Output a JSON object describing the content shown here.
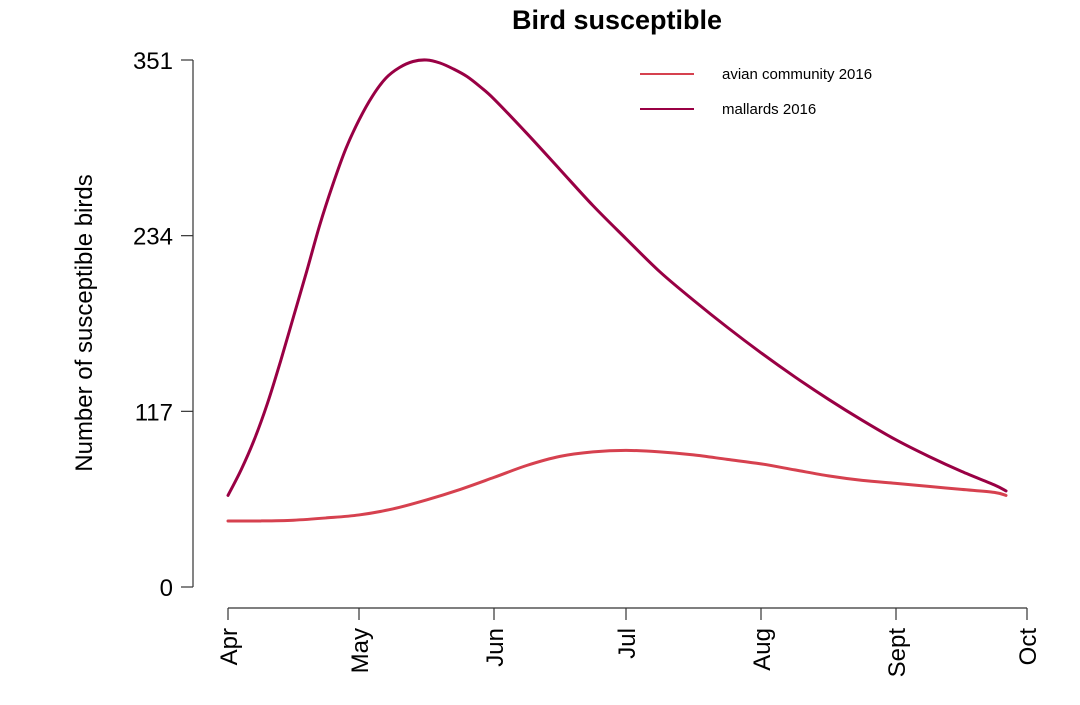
{
  "chart_data": {
    "type": "line",
    "title": "Bird susceptible",
    "xlabel": "",
    "ylabel": "Number of susceptible birds",
    "x_ticks": [
      "Apr",
      "May",
      "Jun",
      "Jul",
      "Aug",
      "Sept",
      "Oct"
    ],
    "y_ticks": [
      0,
      117,
      234,
      351
    ],
    "ylim": [
      0,
      351
    ],
    "xlim": [
      0,
      6
    ],
    "grid": false,
    "legend_position": "top-right",
    "series": [
      {
        "name": "avian community 2016",
        "color": "#d6414f",
        "x": [
          0,
          0.25,
          0.5,
          0.75,
          1.0,
          1.25,
          1.5,
          1.75,
          2.0,
          2.25,
          2.5,
          2.75,
          3.0,
          3.25,
          3.5,
          3.75,
          4.0,
          4.25,
          4.5,
          4.75,
          5.0,
          5.25,
          5.5,
          5.75,
          5.84
        ],
        "values": [
          44,
          44,
          44.5,
          46,
          48,
          52,
          58,
          65,
          73,
          81,
          87,
          90,
          91,
          90,
          88,
          85,
          82,
          78,
          74,
          71,
          69,
          67,
          65,
          63,
          61
        ]
      },
      {
        "name": "mallards 2016",
        "color": "#990044",
        "x": [
          0,
          0.1,
          0.2,
          0.3,
          0.4,
          0.5,
          0.6,
          0.7,
          0.8,
          0.9,
          1.0,
          1.1,
          1.2,
          1.3,
          1.4,
          1.5,
          1.6,
          1.7,
          1.8,
          1.9,
          2.0,
          2.25,
          2.5,
          2.75,
          3.0,
          3.25,
          3.5,
          3.75,
          4.0,
          4.25,
          4.5,
          4.75,
          5.0,
          5.25,
          5.5,
          5.75,
          5.84
        ],
        "values": [
          61,
          78,
          98,
          122,
          150,
          180,
          210,
          241,
          268,
          292,
          311,
          327,
          339,
          346,
          350,
          351,
          349,
          345,
          340,
          333,
          325,
          302,
          278,
          254,
          232,
          210,
          191,
          173,
          156,
          140,
          125,
          111,
          98,
          87,
          77,
          68,
          64
        ]
      }
    ]
  }
}
